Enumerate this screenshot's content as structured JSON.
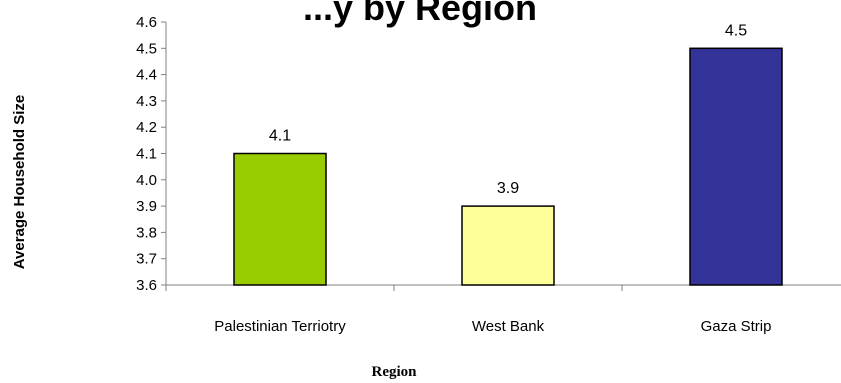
{
  "chart_data": {
    "type": "bar",
    "title": "...y by Region",
    "xlabel": "Region",
    "ylabel": "Average Household Size",
    "categories": [
      "Palestinian Terriotry",
      "West Bank",
      "Gaza Strip"
    ],
    "values": [
      4.1,
      3.9,
      4.5
    ],
    "value_labels": [
      "4.1",
      "3.9",
      "4.5"
    ],
    "bar_colors": [
      "#99cc00",
      "#ffff99",
      "#333399"
    ],
    "ylim": [
      3.6,
      4.6
    ],
    "yticks": [
      "3.6",
      "3.7",
      "3.8",
      "3.9",
      "4.0",
      "4.1",
      "4.2",
      "4.3",
      "4.4",
      "4.5",
      "4.6"
    ],
    "grid": false,
    "legend": "none"
  }
}
